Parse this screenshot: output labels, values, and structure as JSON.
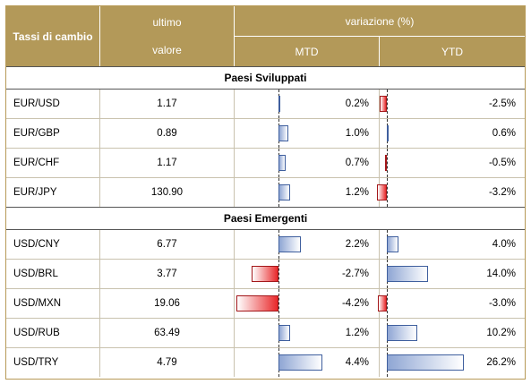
{
  "header": {
    "col1": "Tassi di cambio",
    "col2_line1": "ultimo",
    "col2_line2": "valore",
    "variation": "variazione (%)",
    "mtd": "MTD",
    "ytd": "YTD"
  },
  "sections": [
    {
      "title": "Paesi Sviluppati",
      "rows": [
        {
          "pair": "EUR/USD",
          "value": "1.17",
          "mtd": "0.2%",
          "mtd_num": 0.2,
          "ytd": "-2.5%",
          "ytd_num": -2.5
        },
        {
          "pair": "EUR/GBP",
          "value": "0.89",
          "mtd": "1.0%",
          "mtd_num": 1.0,
          "ytd": "0.6%",
          "ytd_num": 0.6
        },
        {
          "pair": "EUR/CHF",
          "value": "1.17",
          "mtd": "0.7%",
          "mtd_num": 0.7,
          "ytd": "-0.5%",
          "ytd_num": -0.5
        },
        {
          "pair": "EUR/JPY",
          "value": "130.90",
          "mtd": "1.2%",
          "mtd_num": 1.2,
          "ytd": "-3.2%",
          "ytd_num": -3.2
        }
      ]
    },
    {
      "title": "Paesi Emergenti",
      "rows": [
        {
          "pair": "USD/CNY",
          "value": "6.77",
          "mtd": "2.2%",
          "mtd_num": 2.2,
          "ytd": "4.0%",
          "ytd_num": 4.0
        },
        {
          "pair": "USD/BRL",
          "value": "3.77",
          "mtd": "-2.7%",
          "mtd_num": -2.7,
          "ytd": "14.0%",
          "ytd_num": 14.0
        },
        {
          "pair": "USD/MXN",
          "value": "19.06",
          "mtd": "-4.2%",
          "mtd_num": -4.2,
          "ytd": "-3.0%",
          "ytd_num": -3.0
        },
        {
          "pair": "USD/RUB",
          "value": "63.49",
          "mtd": "1.2%",
          "mtd_num": 1.2,
          "ytd": "10.2%",
          "ytd_num": 10.2
        },
        {
          "pair": "USD/TRY",
          "value": "4.79",
          "mtd": "4.4%",
          "mtd_num": 4.4,
          "ytd": "26.2%",
          "ytd_num": 26.2
        }
      ]
    }
  ],
  "colors": {
    "header_bg": "#b39959",
    "positive_bar": "#8fa6d4",
    "negative_bar": "#e8282a"
  }
}
